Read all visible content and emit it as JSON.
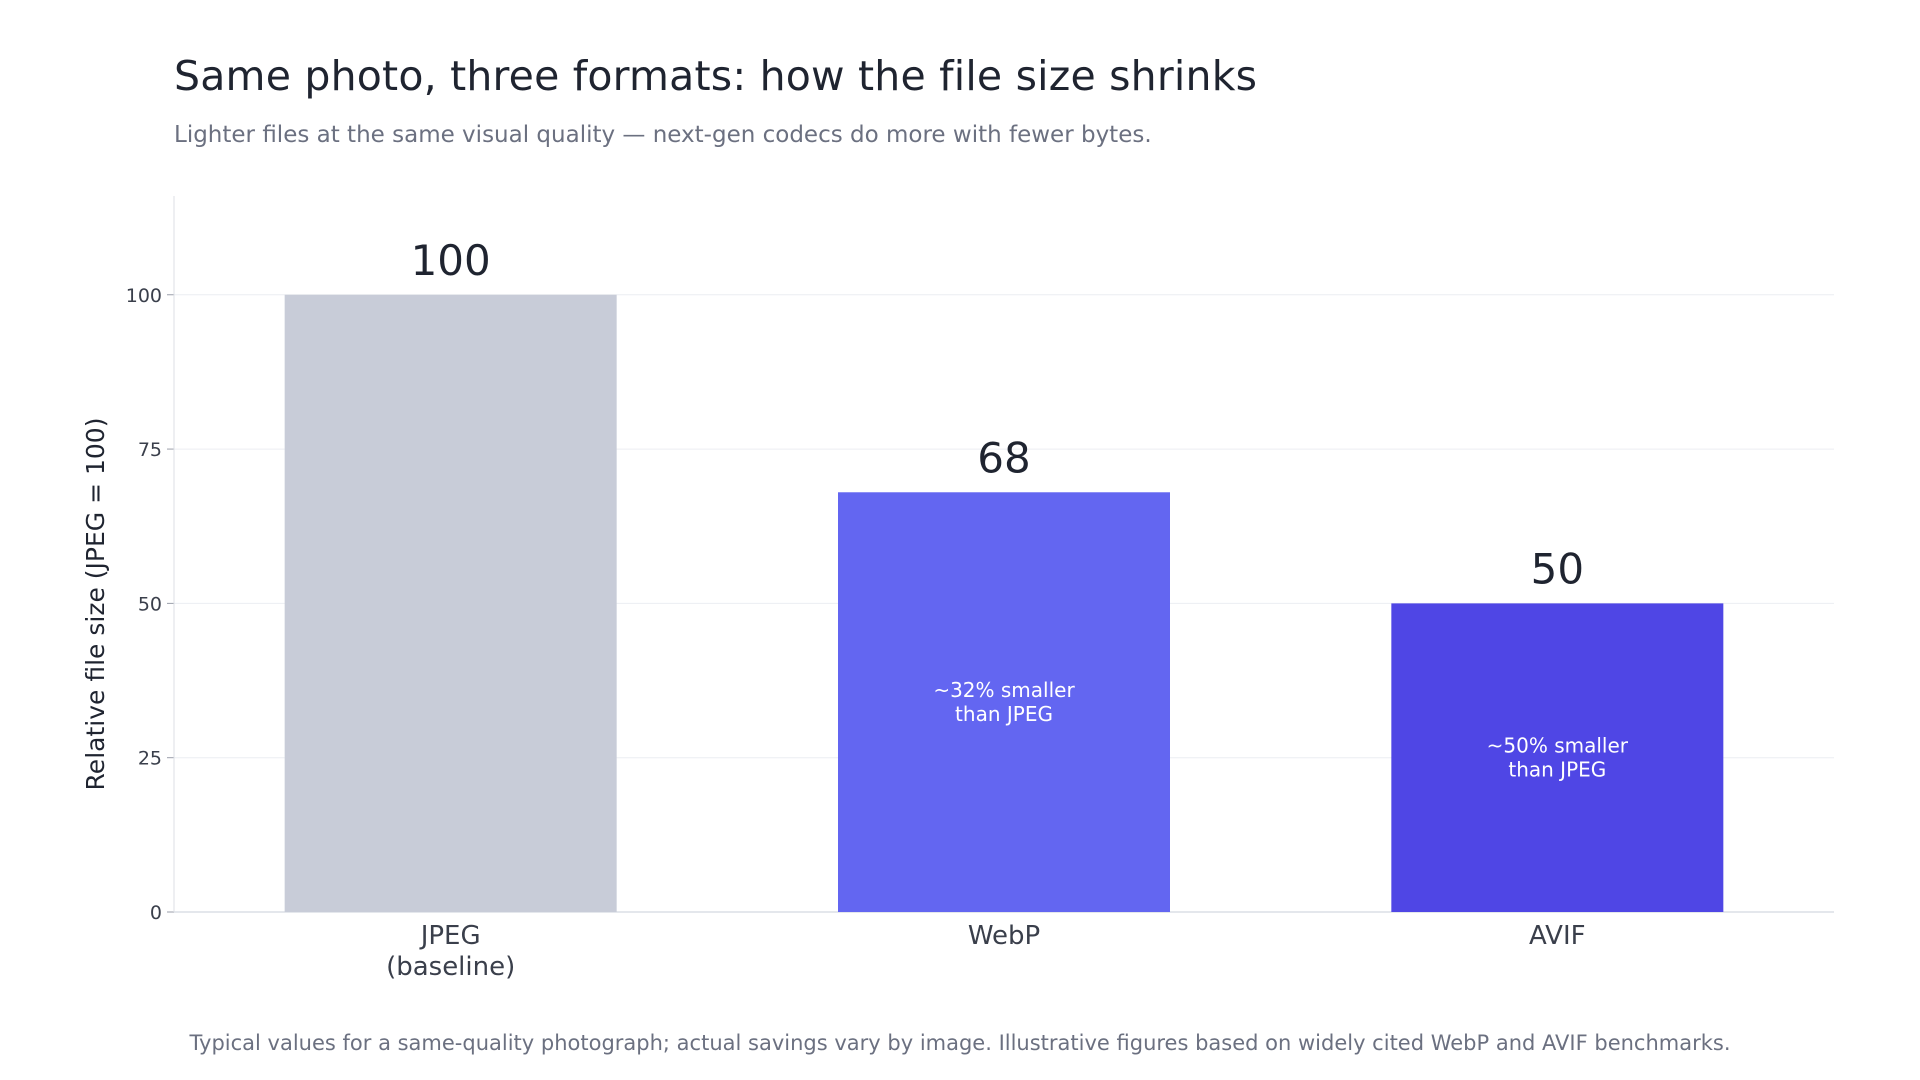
{
  "chart_data": {
    "type": "bar",
    "title": "Same photo, three formats: how the file size shrinks",
    "subtitle": "Lighter files at the same visual quality — next-gen codecs do more with fewer bytes.",
    "xlabel": "",
    "ylabel": "Relative file size (JPEG = 100)",
    "categories": [
      [
        "JPEG",
        "(baseline)"
      ],
      [
        "WebP"
      ],
      [
        "AVIF"
      ]
    ],
    "values": [
      100,
      68,
      50
    ],
    "value_labels": [
      "100",
      "68",
      "50"
    ],
    "annotations": [
      [],
      [
        "~32% smaller",
        "than JPEG"
      ],
      [
        "~50% smaller",
        "than JPEG"
      ]
    ],
    "colors": [
      "#c8ccd8",
      "#6366f1",
      "#4f46e5"
    ],
    "ylim": [
      0,
      116
    ],
    "yticks": [
      0,
      25,
      50,
      75,
      100
    ],
    "grid": true,
    "legend": "none",
    "footnote": "Typical values for a same-quality photograph; actual savings vary by image. Illustrative figures based on widely cited WebP and AVIF benchmarks."
  }
}
